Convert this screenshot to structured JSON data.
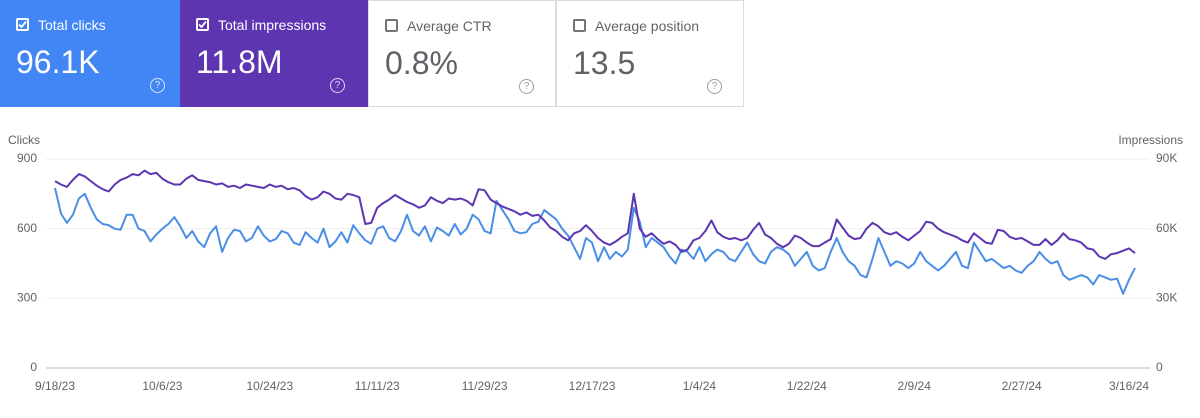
{
  "metrics": [
    {
      "label": "Total clicks",
      "value": "96.1K",
      "checked": true,
      "color": "#4285f4"
    },
    {
      "label": "Total impressions",
      "value": "11.8M",
      "checked": true,
      "color": "#5e35b1"
    },
    {
      "label": "Average CTR",
      "value": "0.8%",
      "checked": false,
      "color": "#00897b"
    },
    {
      "label": "Average position",
      "value": "13.5",
      "checked": false,
      "color": "#e8710a"
    }
  ],
  "chart_data": {
    "type": "line",
    "ylabel": "Clicks",
    "y2label": "Impressions",
    "ylim": [
      0,
      900
    ],
    "yticks": [
      0,
      300,
      600,
      900
    ],
    "y2lim": [
      0,
      90000
    ],
    "y2ticks": [
      0,
      {
        "value": 30000,
        "label": "30K"
      },
      {
        "value": 60000,
        "label": "60K"
      },
      {
        "value": 90000,
        "label": "90K"
      }
    ],
    "grid": true,
    "xticks": [
      "9/18/23",
      "10/6/23",
      "10/24/23",
      "11/11/23",
      "11/29/23",
      "12/17/23",
      "1/4/24",
      "1/22/24",
      "2/9/24",
      "2/27/24",
      "3/16/24"
    ],
    "x": [
      "9/18/23",
      "9/19/23",
      "9/20/23",
      "9/21/23",
      "9/22/23",
      "9/23/23",
      "9/24/23",
      "9/25/23",
      "9/26/23",
      "9/27/23",
      "9/28/23",
      "9/29/23",
      "9/30/23",
      "10/1/23",
      "10/2/23",
      "10/3/23",
      "10/4/23",
      "10/5/23",
      "10/6/23",
      "10/7/23",
      "10/8/23",
      "10/9/23",
      "10/10/23",
      "10/11/23",
      "10/12/23",
      "10/13/23",
      "10/14/23",
      "10/15/23",
      "10/16/23",
      "10/17/23",
      "10/18/23",
      "10/19/23",
      "10/20/23",
      "10/21/23",
      "10/22/23",
      "10/23/23",
      "10/24/23",
      "10/25/23",
      "10/26/23",
      "10/27/23",
      "10/28/23",
      "10/29/23",
      "10/30/23",
      "10/31/23",
      "11/1/23",
      "11/2/23",
      "11/3/23",
      "11/4/23",
      "11/5/23",
      "11/6/23",
      "11/7/23",
      "11/8/23",
      "11/9/23",
      "11/10/23",
      "11/11/23",
      "11/12/23",
      "11/13/23",
      "11/14/23",
      "11/15/23",
      "11/16/23",
      "11/17/23",
      "11/18/23",
      "11/19/23",
      "11/20/23",
      "11/21/23",
      "11/22/23",
      "11/23/23",
      "11/24/23",
      "11/25/23",
      "11/26/23",
      "11/27/23",
      "11/28/23",
      "11/29/23",
      "11/30/23",
      "12/1/23",
      "12/2/23",
      "12/3/23",
      "12/4/23",
      "12/5/23",
      "12/6/23",
      "12/7/23",
      "12/8/23",
      "12/9/23",
      "12/10/23",
      "12/11/23",
      "12/12/23",
      "12/13/23",
      "12/14/23",
      "12/15/23",
      "12/16/23",
      "12/17/23",
      "12/18/23",
      "12/19/23",
      "12/20/23",
      "12/21/23",
      "12/22/23",
      "12/23/23",
      "12/24/23",
      "12/25/23",
      "12/26/23",
      "12/27/23",
      "12/28/23",
      "12/29/23",
      "12/30/23",
      "12/31/23",
      "1/1/24",
      "1/2/24",
      "1/3/24",
      "1/4/24",
      "1/5/24",
      "1/6/24",
      "1/7/24",
      "1/8/24",
      "1/9/24",
      "1/10/24",
      "1/11/24",
      "1/12/24",
      "1/13/24",
      "1/14/24",
      "1/15/24",
      "1/16/24",
      "1/17/24",
      "1/18/24",
      "1/19/24",
      "1/20/24",
      "1/21/24",
      "1/22/24",
      "1/23/24",
      "1/24/24",
      "1/25/24",
      "1/26/24",
      "1/27/24",
      "1/28/24",
      "1/29/24",
      "1/30/24",
      "1/31/24",
      "2/1/24",
      "2/2/24",
      "2/3/24",
      "2/4/24",
      "2/5/24",
      "2/6/24",
      "2/7/24",
      "2/8/24",
      "2/9/24",
      "2/10/24",
      "2/11/24",
      "2/12/24",
      "2/13/24",
      "2/14/24",
      "2/15/24",
      "2/16/24",
      "2/17/24",
      "2/18/24",
      "2/19/24",
      "2/20/24",
      "2/21/24",
      "2/22/24",
      "2/23/24",
      "2/24/24",
      "2/25/24",
      "2/26/24",
      "2/27/24",
      "2/28/24",
      "2/29/24",
      "3/1/24",
      "3/2/24",
      "3/3/24",
      "3/4/24",
      "3/5/24",
      "3/6/24",
      "3/7/24",
      "3/8/24",
      "3/9/24",
      "3/10/24",
      "3/11/24",
      "3/12/24",
      "3/13/24",
      "3/14/24",
      "3/15/24",
      "3/16/24",
      "3/17/24"
    ],
    "series": [
      {
        "name": "Clicks",
        "color": "#4a8ee6",
        "values": [
          775,
          665,
          625,
          660,
          730,
          750,
          690,
          640,
          620,
          615,
          600,
          595,
          660,
          660,
          600,
          590,
          545,
          575,
          600,
          620,
          650,
          610,
          560,
          590,
          545,
          520,
          580,
          610,
          500,
          560,
          595,
          590,
          545,
          560,
          610,
          570,
          545,
          555,
          590,
          580,
          540,
          530,
          585,
          560,
          540,
          600,
          520,
          545,
          585,
          540,
          615,
          580,
          550,
          535,
          600,
          610,
          560,
          545,
          590,
          660,
          590,
          570,
          610,
          545,
          605,
          590,
          570,
          620,
          575,
          600,
          660,
          640,
          590,
          580,
          720,
          680,
          640,
          590,
          580,
          585,
          620,
          630,
          680,
          660,
          640,
          600,
          570,
          520,
          470,
          560,
          540,
          460,
          520,
          470,
          500,
          480,
          510,
          690,
          630,
          520,
          560,
          540,
          520,
          480,
          450,
          510,
          500,
          470,
          520,
          460,
          490,
          510,
          500,
          470,
          460,
          500,
          540,
          490,
          460,
          450,
          500,
          520,
          510,
          490,
          440,
          470,
          500,
          440,
          420,
          430,
          500,
          560,
          500,
          460,
          440,
          400,
          390,
          470,
          560,
          500,
          440,
          460,
          450,
          430,
          450,
          500,
          460,
          440,
          420,
          440,
          470,
          500,
          440,
          430,
          540,
          500,
          460,
          470,
          450,
          430,
          440,
          420,
          410,
          440,
          460,
          500,
          470,
          450,
          460,
          400,
          380,
          390,
          400,
          390,
          360,
          400,
          390,
          380,
          385,
          320,
          380,
          430
        ]
      },
      {
        "name": "Impressions",
        "color": "#5e35b1",
        "axis": "y2",
        "values": [
          80500,
          79000,
          78000,
          81000,
          83500,
          82500,
          80500,
          78500,
          77000,
          76000,
          79000,
          81000,
          82000,
          83500,
          83000,
          85000,
          83500,
          84000,
          81500,
          80000,
          79000,
          79000,
          81500,
          83000,
          81000,
          80500,
          80000,
          79000,
          79500,
          78000,
          78500,
          77500,
          79000,
          78500,
          78000,
          77500,
          79000,
          78000,
          78500,
          77000,
          77500,
          76500,
          74000,
          72500,
          73500,
          76000,
          75000,
          73000,
          72500,
          75000,
          74500,
          73500,
          62000,
          62500,
          69000,
          71000,
          72500,
          74500,
          73000,
          71500,
          70500,
          69000,
          70000,
          73500,
          72000,
          71000,
          73000,
          72500,
          73000,
          72000,
          70000,
          77000,
          76500,
          72500,
          71000,
          69500,
          68500,
          67500,
          66000,
          67000,
          65500,
          66000,
          63500,
          60500,
          59000,
          56500,
          55000,
          58000,
          59000,
          61500,
          59000,
          56000,
          54000,
          53000,
          54500,
          56500,
          58000,
          75000,
          60000,
          56500,
          58000,
          55500,
          53500,
          54500,
          53000,
          50000,
          51000,
          55000,
          56000,
          59000,
          63500,
          58500,
          56500,
          55500,
          56000,
          55000,
          56000,
          59500,
          62500,
          57500,
          56000,
          53500,
          52000,
          53500,
          57000,
          56000,
          54000,
          52500,
          52500,
          54000,
          55500,
          64000,
          60500,
          57000,
          55500,
          56000,
          60000,
          62500,
          61000,
          58500,
          57500,
          58500,
          56500,
          55000,
          57000,
          59000,
          63000,
          62500,
          60000,
          58500,
          57500,
          56500,
          55000,
          54000,
          58000,
          56000,
          54000,
          53500,
          59500,
          59000,
          56500,
          55500,
          56000,
          54500,
          53000,
          53000,
          55500,
          53000,
          55000,
          58000,
          55500,
          55000,
          54000,
          51500,
          51000,
          48000,
          47000,
          49000,
          49500,
          50500,
          51500,
          49500
        ]
      }
    ]
  }
}
